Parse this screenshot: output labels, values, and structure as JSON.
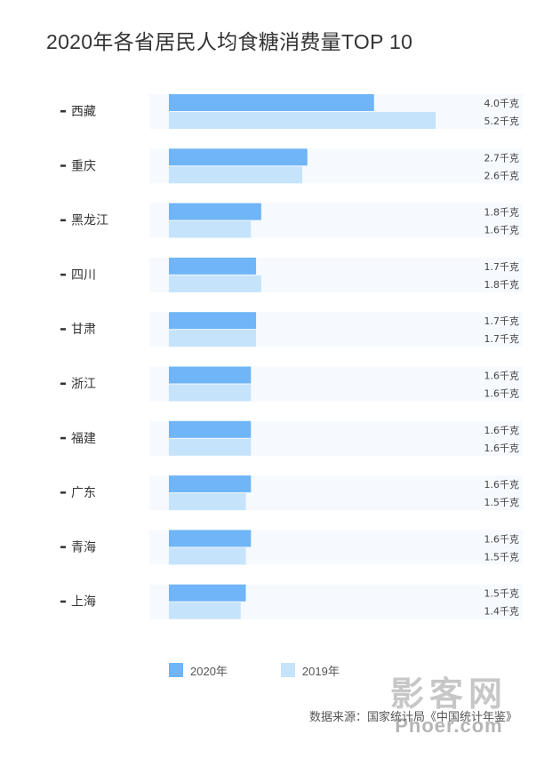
{
  "title": "2020年各省居民人均食糖消费量TOP 10",
  "unit": "千克",
  "colors": {
    "series_2020": "#6fb5f7",
    "series_2019": "#c5e3fb",
    "row_background": "#f6f9fd",
    "text": "#333333"
  },
  "chart_data": {
    "type": "bar",
    "orientation": "horizontal",
    "categories": [
      "西藏",
      "重庆",
      "黑龙江",
      "四川",
      "甘肃",
      "浙江",
      "福建",
      "广东",
      "青海",
      "上海"
    ],
    "series": [
      {
        "name": "2020年",
        "values": [
          4.0,
          2.7,
          1.8,
          1.7,
          1.7,
          1.6,
          1.6,
          1.6,
          1.6,
          1.5
        ]
      },
      {
        "name": "2019年",
        "values": [
          5.2,
          2.6,
          1.6,
          1.8,
          1.7,
          1.6,
          1.6,
          1.5,
          1.5,
          1.4
        ]
      }
    ],
    "value_labels": [
      [
        "4.0千克",
        "2.7千克",
        "1.8千克",
        "1.7千克",
        "1.7千克",
        "1.6千克",
        "1.6千克",
        "1.6千克",
        "1.6千克",
        "1.5千克"
      ],
      [
        "5.2千克",
        "2.6千克",
        "1.6千克",
        "1.8千克",
        "1.7千克",
        "1.6千克",
        "1.6千克",
        "1.5千克",
        "1.5千克",
        "1.4千克"
      ]
    ],
    "xlim": [
      0,
      6.8
    ],
    "legend": "bottom",
    "grid": false
  },
  "legend": [
    {
      "label": "2020年",
      "color": "#6fb5f7"
    },
    {
      "label": "2019年",
      "color": "#c5e3fb"
    }
  ],
  "source": "数据来源：国家统计局《中国统计年鉴》",
  "watermark": {
    "top": "影客网",
    "bottom": "Phoer.com"
  }
}
